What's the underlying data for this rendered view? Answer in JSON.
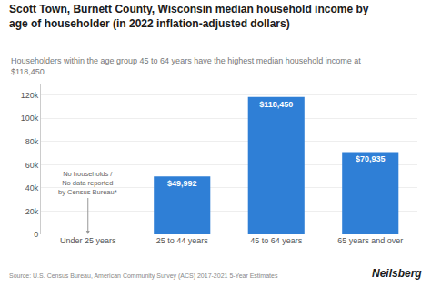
{
  "chart_data": {
    "type": "bar",
    "title": "Scott Town, Burnett County, Wisconsin median household income by\nage of householder (in 2022 inflation-adjusted dollars)",
    "subtitle": "Householders within the age group 45 to 64 years have the highest median household income at\n$118,450.",
    "categories": [
      "Under 25 years",
      "25 to 44 years",
      "45 to 64 years",
      "65 years and over"
    ],
    "values": [
      0,
      49992,
      118450,
      70935
    ],
    "value_labels": [
      null,
      "$49,992",
      "$118,450",
      "$70,935"
    ],
    "color": "#2F7FD6",
    "ylim": [
      0,
      130000
    ],
    "yticks": [
      0,
      {
        "value": 20000,
        "label": "20k"
      },
      {
        "value": 40000,
        "label": "40k"
      },
      {
        "value": 60000,
        "label": "60k"
      },
      {
        "value": 80000,
        "label": "80k"
      },
      {
        "value": 100000,
        "label": "100k"
      },
      {
        "value": 120000,
        "label": "120k"
      }
    ],
    "grid": true,
    "annotations": [
      {
        "text": "No households /\nNo data reported\nby Census Bureau*",
        "category": "Under 25 years"
      }
    ],
    "source": "Source: U.S. Census Bureau, American Community Survey (ACS) 2017-2021 5-Year Estimates",
    "brand": "Neilsberg"
  }
}
